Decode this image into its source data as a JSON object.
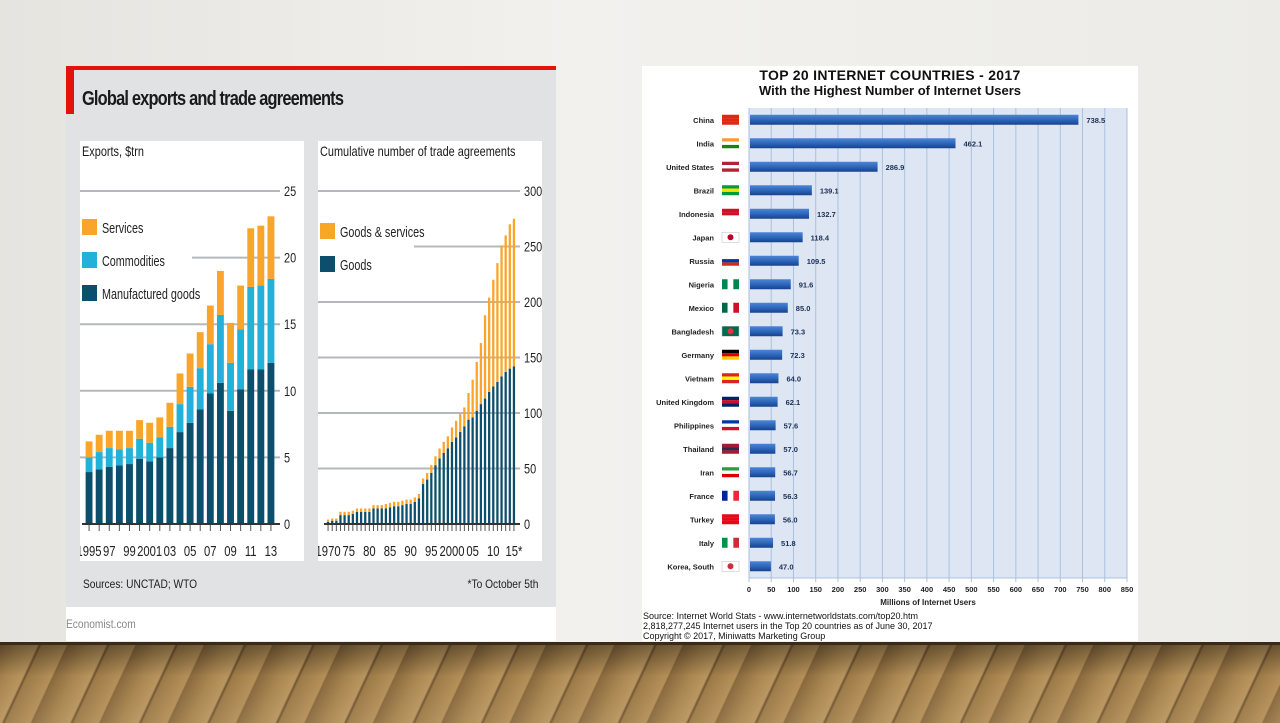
{
  "slide": {
    "background": "#eceae6",
    "floor": "wood-floor"
  },
  "economist": {
    "title": "Global exports and trade agreements",
    "accent": "#e3120b",
    "source": "Sources: UNCTAD; WTO",
    "note": "*To October 5th",
    "brand": "Economist.com"
  },
  "internet": {
    "title_line1": "TOP 20 INTERNET COUNTRIES  - 2017",
    "title_line2": "With the Highest Number of Internet Users",
    "footer": [
      "Source: Internet World Stats  -  www.internetworldstats.com/top20.htm",
      "2,818,277,245 Internet users in the Top 20 countries as of June 30, 2017",
      "Copyright © 2017, Miniwatts Marketing Group"
    ]
  },
  "chart_data": [
    {
      "type": "bar",
      "stacked": true,
      "title": "Exports, $trn",
      "xlabel": "",
      "ylabel": "Exports, $trn",
      "ylim": [
        0,
        25
      ],
      "yticks": [
        0,
        5,
        10,
        15,
        20,
        25
      ],
      "y_axis_side": "right",
      "grid": true,
      "legend_position": "top-left",
      "categories": [
        "1995",
        "1996",
        "1997",
        "1998",
        "1999",
        "2000",
        "2001",
        "2002",
        "2003",
        "2004",
        "2005",
        "2006",
        "2007",
        "2008",
        "2009",
        "2010",
        "2011",
        "2012",
        "2013"
      ],
      "xtick_labels": [
        "1995",
        "97",
        "99",
        "2001",
        "03",
        "05",
        "07",
        "09",
        "11",
        "13"
      ],
      "xtick_label_categories": [
        "1995",
        "1997",
        "1999",
        "2001",
        "2003",
        "2005",
        "2007",
        "2009",
        "2011",
        "2013"
      ],
      "series": [
        {
          "name": "Manufactured goods",
          "color": "#0b4f6c",
          "values": [
            3.9,
            4.1,
            4.3,
            4.4,
            4.5,
            4.9,
            4.7,
            5.0,
            5.7,
            6.9,
            7.6,
            8.6,
            9.8,
            10.6,
            8.5,
            10.1,
            11.6,
            11.6,
            12.1
          ]
        },
        {
          "name": "Commodities",
          "color": "#22b2d9",
          "values": [
            1.1,
            1.3,
            1.4,
            1.2,
            1.2,
            1.5,
            1.4,
            1.5,
            1.6,
            2.1,
            2.7,
            3.1,
            3.7,
            5.1,
            3.6,
            4.5,
            6.2,
            6.3,
            6.3
          ]
        },
        {
          "name": "Services",
          "color": "#f9a52a",
          "values": [
            1.2,
            1.3,
            1.3,
            1.4,
            1.3,
            1.4,
            1.5,
            1.5,
            1.8,
            2.3,
            2.5,
            2.7,
            2.9,
            3.3,
            3.0,
            3.3,
            4.4,
            4.5,
            4.7
          ]
        }
      ]
    },
    {
      "type": "bar",
      "stacked": true,
      "title": "Cumulative number of trade agreements",
      "xlabel": "",
      "ylabel": "",
      "ylim": [
        0,
        300
      ],
      "yticks": [
        0,
        50,
        100,
        150,
        200,
        250,
        300
      ],
      "y_axis_side": "right",
      "grid": true,
      "legend_position": "top-left",
      "categories": [
        "1970",
        "1971",
        "1972",
        "1973",
        "1974",
        "1975",
        "1976",
        "1977",
        "1978",
        "1979",
        "1980",
        "1981",
        "1982",
        "1983",
        "1984",
        "1985",
        "1986",
        "1987",
        "1988",
        "1989",
        "1990",
        "1991",
        "1992",
        "1993",
        "1994",
        "1995",
        "1996",
        "1997",
        "1998",
        "1999",
        "2000",
        "2001",
        "2002",
        "2003",
        "2004",
        "2005",
        "2006",
        "2007",
        "2008",
        "2009",
        "2010",
        "2011",
        "2012",
        "2013",
        "2014",
        "2015"
      ],
      "xtick_labels": [
        "1970",
        "75",
        "80",
        "85",
        "90",
        "95",
        "2000",
        "05",
        "10",
        "15*"
      ],
      "xtick_label_categories": [
        "1970",
        "1975",
        "1980",
        "1985",
        "1990",
        "1995",
        "2000",
        "2005",
        "2010",
        "2015"
      ],
      "series": [
        {
          "name": "Goods",
          "color": "#0b4f6c",
          "values": [
            2,
            3,
            3,
            8,
            8,
            8,
            9,
            11,
            11,
            11,
            11,
            14,
            14,
            14,
            14,
            15,
            16,
            16,
            17,
            18,
            18,
            20,
            23,
            36,
            40,
            46,
            53,
            59,
            64,
            68,
            74,
            78,
            83,
            88,
            94,
            96,
            102,
            108,
            113,
            119,
            124,
            128,
            133,
            137,
            140,
            142
          ]
        },
        {
          "name": "Goods & services",
          "color": "#f9a52a",
          "values": [
            2,
            2,
            2,
            3,
            3,
            3,
            3,
            3,
            3,
            3,
            3,
            3,
            3,
            3,
            4,
            4,
            4,
            4,
            4,
            4,
            4,
            4,
            4,
            5,
            6,
            7,
            8,
            9,
            10,
            11,
            13,
            15,
            16,
            17,
            24,
            34,
            44,
            55,
            75,
            85,
            96,
            107,
            118,
            123,
            130,
            133
          ]
        }
      ]
    },
    {
      "type": "bar",
      "orientation": "horizontal",
      "title": "TOP 20 INTERNET COUNTRIES  - 2017 — With the Highest Number of Internet Users",
      "xlabel": "Millions of Internet Users",
      "ylabel": "",
      "xlim": [
        0,
        850
      ],
      "xticks": [
        0,
        50,
        100,
        150,
        200,
        250,
        300,
        350,
        400,
        450,
        500,
        550,
        600,
        650,
        700,
        750,
        800,
        850
      ],
      "grid": true,
      "bar_color": "#2a63b8",
      "categories": [
        "China",
        "India",
        "United States",
        "Brazil",
        "Indonesia",
        "Japan",
        "Russia",
        "Nigeria",
        "Mexico",
        "Bangladesh",
        "Germany",
        "Vietnam",
        "United Kingdom",
        "Philippines",
        "Thailand",
        "Iran",
        "France",
        "Turkey",
        "Italy",
        "Korea, South"
      ],
      "values": [
        738.5,
        462.1,
        286.9,
        139.1,
        132.7,
        118.4,
        109.5,
        91.6,
        85.0,
        73.3,
        72.3,
        64.0,
        62.1,
        57.6,
        57.0,
        56.7,
        56.3,
        56.0,
        51.8,
        47.0
      ],
      "value_labels": [
        "738.5",
        "462.1",
        "286.9",
        "139.1",
        "132.7",
        "118.4",
        "109.5",
        "91.6",
        "85.0",
        "73.3",
        "72.3",
        "64.0",
        "62.1",
        "57.6",
        "57.0",
        "56.7",
        "56.3",
        "56.0",
        "51.8",
        "47.0"
      ],
      "flags": [
        "china-flag-icon",
        "india-flag-icon",
        "usa-flag-icon",
        "brazil-flag-icon",
        "indonesia-flag-icon",
        "japan-flag-icon",
        "russia-flag-icon",
        "nigeria-flag-icon",
        "mexico-flag-icon",
        "bangladesh-flag-icon",
        "germany-flag-icon",
        "vietnam-flag-icon",
        "uk-flag-icon",
        "philippines-flag-icon",
        "thailand-flag-icon",
        "iran-flag-icon",
        "france-flag-icon",
        "turkey-flag-icon",
        "italy-flag-icon",
        "south-korea-flag-icon"
      ]
    }
  ]
}
